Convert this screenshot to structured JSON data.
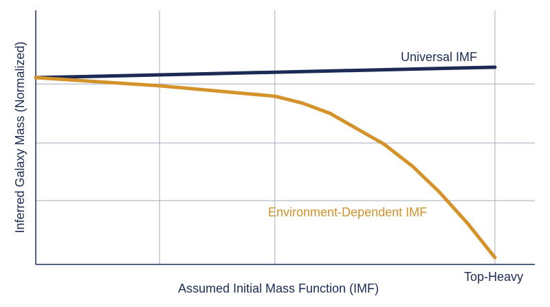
{
  "chart_data": {
    "type": "line",
    "x_label": "Assumed Initial Mass Function (IMF)",
    "y_label": "Inferred Galaxy Mass (Normalized)",
    "x_end_label": "Top-Heavy",
    "xlim": [
      0,
      100
    ],
    "ylim": [
      0,
      100
    ],
    "xticks": [
      24.8,
      47.9,
      92
    ],
    "yticks": [
      25.1,
      47.8,
      71
    ],
    "grid": true,
    "series": [
      {
        "name": "Universal IMF",
        "color": "#1c2b55",
        "x": [
          0,
          92
        ],
        "values": [
          73.5,
          77.6
        ]
      },
      {
        "name": "Environment-Dependent IMF",
        "color": "#d4922a",
        "x": [
          0,
          24.8,
          47.9,
          53.4,
          58.9,
          69.8,
          75.5,
          80.9,
          86.5,
          92
        ],
        "values": [
          73.5,
          70.3,
          66.2,
          63.5,
          59.5,
          47.3,
          38.6,
          28.4,
          16.2,
          2.7
        ]
      }
    ]
  }
}
